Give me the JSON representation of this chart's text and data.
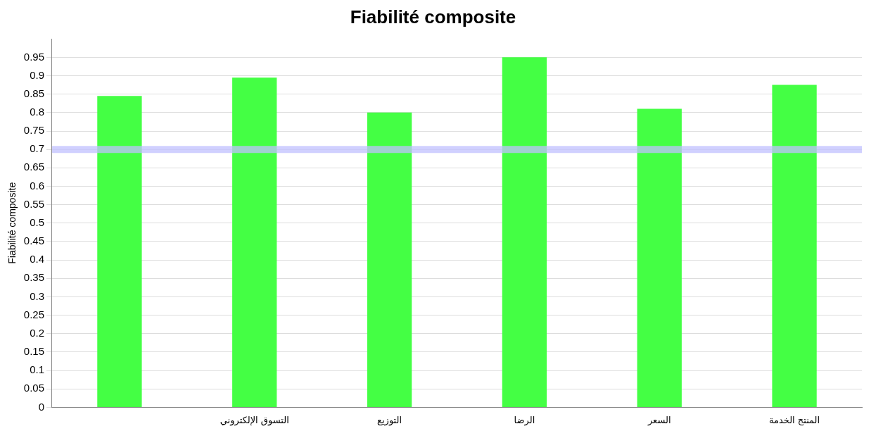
{
  "chart_data": {
    "type": "bar",
    "title": "Fiabilité composite",
    "ylabel": "Fiabilité composite",
    "categories": [
      null,
      "التسوق الإلكتروني",
      "التوزيع",
      "الرضا",
      "السعر",
      "المنتج الخدمة"
    ],
    "values": [
      0.845,
      0.895,
      0.8,
      0.95,
      0.81,
      0.875
    ],
    "color": "#44ff44",
    "ylim": [
      0,
      1
    ],
    "yticks": [
      0,
      0.05,
      0.1,
      0.15,
      0.2,
      0.25,
      0.3,
      0.35,
      0.4,
      0.45,
      0.5,
      0.55,
      0.6,
      0.65,
      0.7,
      0.75,
      0.8,
      0.85,
      0.9,
      0.95
    ],
    "grid": "y",
    "legend": false,
    "ref_lines": [
      {
        "axis": "y",
        "value": 0.7,
        "color": "#c0c0ff"
      }
    ]
  }
}
